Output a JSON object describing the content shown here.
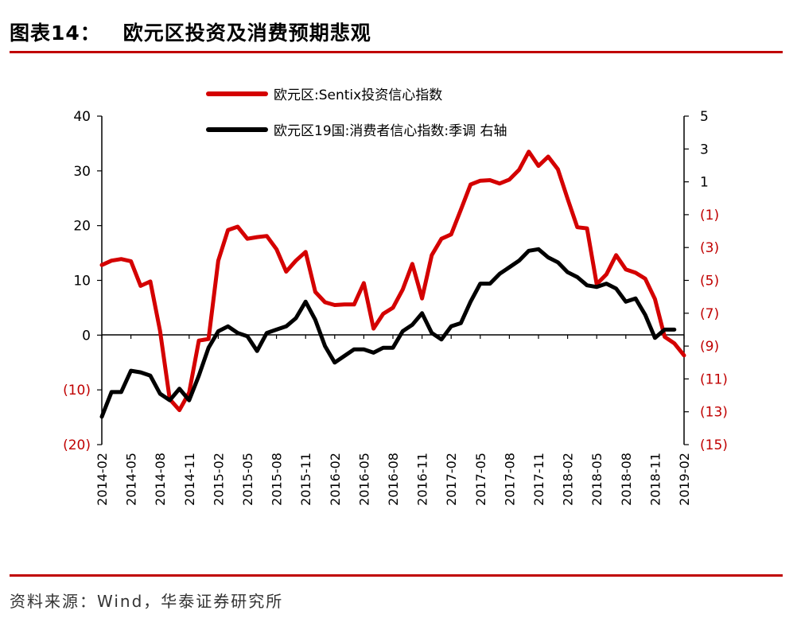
{
  "figure": {
    "label": "图表14：",
    "title": "欧元区投资及消费预期悲观",
    "source": "资料来源：Wind，华泰证券研究所"
  },
  "colors": {
    "accent": "#c00000",
    "series_red": "#d40000",
    "series_black": "#000000",
    "negative_tick": "#c00000"
  },
  "chart_data": {
    "type": "line",
    "legend_placement": "top-center",
    "grid": false,
    "x_ticks": [
      "2014-02",
      "2014-05",
      "2014-08",
      "2014-11",
      "2015-02",
      "2015-05",
      "2015-08",
      "2015-11",
      "2016-02",
      "2016-05",
      "2016-08",
      "2016-11",
      "2017-02",
      "2017-05",
      "2017-08",
      "2017-11",
      "2018-02",
      "2018-05",
      "2018-08",
      "2018-11",
      "2019-02"
    ],
    "left_axis": {
      "ylim": [
        -20,
        40
      ],
      "ticks": [
        "40",
        "30",
        "20",
        "10",
        "0",
        "(10)",
        "(20)"
      ],
      "tick_values": [
        40,
        30,
        20,
        10,
        0,
        -10,
        -20
      ]
    },
    "right_axis": {
      "ylim": [
        -15,
        5
      ],
      "ticks": [
        "5",
        "3",
        "1",
        "(1)",
        "(3)",
        "(5)",
        "(7)",
        "(9)",
        "(11)",
        "(13)",
        "(15)"
      ],
      "tick_values": [
        5,
        3,
        1,
        -1,
        -3,
        -5,
        -7,
        -9,
        -11,
        -13,
        -15
      ]
    },
    "series": [
      {
        "name": "欧元区:Sentix投资信心指数",
        "axis": "left",
        "color": "#d40000",
        "x": [
          "2014-02",
          "2014-03",
          "2014-04",
          "2014-05",
          "2014-06",
          "2014-07",
          "2014-08",
          "2014-09",
          "2014-10",
          "2014-11",
          "2014-12",
          "2015-01",
          "2015-02",
          "2015-03",
          "2015-04",
          "2015-05",
          "2015-06",
          "2015-07",
          "2015-08",
          "2015-09",
          "2015-10",
          "2015-11",
          "2015-12",
          "2016-01",
          "2016-02",
          "2016-03",
          "2016-04",
          "2016-05",
          "2016-06",
          "2016-07",
          "2016-08",
          "2016-09",
          "2016-10",
          "2016-11",
          "2016-12",
          "2017-01",
          "2017-02",
          "2017-03",
          "2017-04",
          "2017-05",
          "2017-06",
          "2017-07",
          "2017-08",
          "2017-09",
          "2017-10",
          "2017-11",
          "2017-12",
          "2018-01",
          "2018-02",
          "2018-03",
          "2018-04",
          "2018-05",
          "2018-06",
          "2018-07",
          "2018-08",
          "2018-09",
          "2018-10",
          "2018-11",
          "2018-12",
          "2019-01",
          "2019-02"
        ],
        "values": [
          12.8,
          13.6,
          13.9,
          13.5,
          9.0,
          9.8,
          0.8,
          -11.7,
          -13.7,
          -10.5,
          -1.0,
          -0.7,
          13.6,
          19.2,
          19.8,
          17.6,
          17.9,
          18.1,
          15.7,
          11.6,
          13.6,
          15.2,
          7.9,
          6.0,
          5.5,
          5.6,
          5.6,
          9.5,
          1.2,
          3.9,
          5.0,
          8.3,
          13.0,
          6.7,
          14.6,
          17.6,
          18.4,
          22.9,
          27.5,
          28.2,
          28.3,
          27.7,
          28.4,
          30.2,
          33.5,
          30.9,
          32.6,
          30.3,
          24.9,
          19.7,
          19.5,
          9.3,
          11.1,
          14.6,
          12.0,
          11.4,
          10.3,
          6.6,
          -0.3,
          -1.5,
          -3.7
        ]
      },
      {
        "name": "欧元区19国:消费者信心指数:季调  右轴",
        "axis": "right",
        "color": "#000000",
        "x": [
          "2014-02",
          "2014-03",
          "2014-04",
          "2014-05",
          "2014-06",
          "2014-07",
          "2014-08",
          "2014-09",
          "2014-10",
          "2014-11",
          "2014-12",
          "2015-01",
          "2015-02",
          "2015-03",
          "2015-04",
          "2015-05",
          "2015-06",
          "2015-07",
          "2015-08",
          "2015-09",
          "2015-10",
          "2015-11",
          "2015-12",
          "2016-01",
          "2016-02",
          "2016-03",
          "2016-04",
          "2016-05",
          "2016-06",
          "2016-07",
          "2016-08",
          "2016-09",
          "2016-10",
          "2016-11",
          "2016-12",
          "2017-01",
          "2017-02",
          "2017-03",
          "2017-04",
          "2017-05",
          "2017-06",
          "2017-07",
          "2017-08",
          "2017-09",
          "2017-10",
          "2017-11",
          "2017-12",
          "2018-01",
          "2018-02",
          "2018-03",
          "2018-04",
          "2018-05",
          "2018-06",
          "2018-07",
          "2018-08",
          "2018-09",
          "2018-10",
          "2018-11",
          "2018-12",
          "2019-01"
        ],
        "values": [
          -13.3,
          -11.8,
          -11.8,
          -10.5,
          -10.6,
          -10.8,
          -11.9,
          -12.3,
          -11.6,
          -12.3,
          -10.8,
          -9.1,
          -8.1,
          -7.8,
          -8.2,
          -8.4,
          -9.3,
          -8.2,
          -8.0,
          -7.8,
          -7.3,
          -6.3,
          -7.4,
          -9.0,
          -10.0,
          -9.6,
          -9.2,
          -9.2,
          -9.4,
          -9.1,
          -9.1,
          -8.1,
          -7.7,
          -7.0,
          -8.2,
          -8.6,
          -7.8,
          -7.6,
          -6.3,
          -5.2,
          -5.2,
          -4.6,
          -4.2,
          -3.8,
          -3.2,
          -3.1,
          -3.6,
          -3.9,
          -4.5,
          -4.8,
          -5.3,
          -5.4,
          -5.2,
          -5.5,
          -6.3,
          -6.1,
          -7.1,
          -8.5,
          -8.0,
          -8.0
        ]
      }
    ]
  }
}
